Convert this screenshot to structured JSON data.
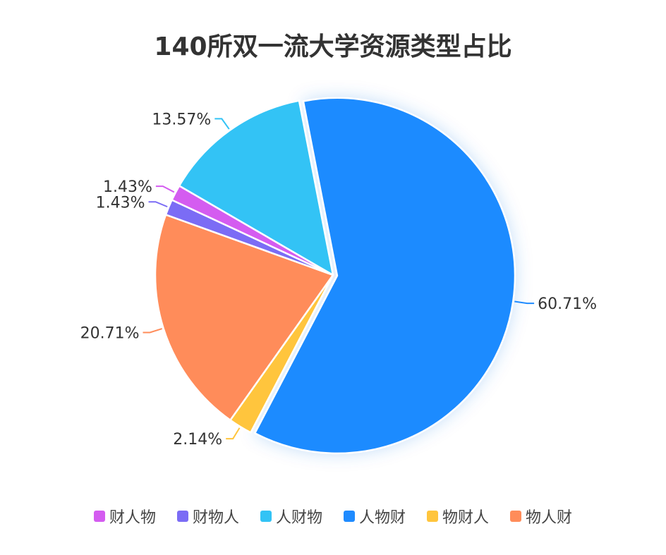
{
  "chart_data": {
    "type": "pie",
    "title": "140所双一流大学资源类型占比",
    "categories": [
      "财人物",
      "财物人",
      "人财物",
      "人物财",
      "物财人",
      "物人财"
    ],
    "values": [
      1.43,
      1.43,
      13.57,
      60.71,
      2.14,
      20.71
    ],
    "value_labels": [
      "1.43%",
      "1.43%",
      "13.57%",
      "60.71%",
      "2.14%",
      "20.71%"
    ],
    "colors": [
      "#D45CF0",
      "#7B6CF5",
      "#33C3F5",
      "#1F8BFF",
      "#FFC53D",
      "#FF8C5A"
    ],
    "legend_position": "bottom"
  }
}
